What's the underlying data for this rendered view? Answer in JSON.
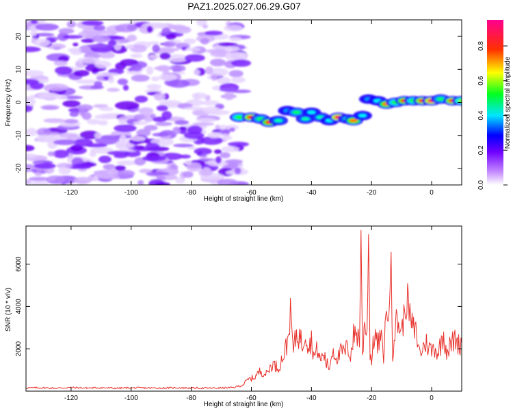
{
  "title": "PAZ1.2025.027.06.29.G07",
  "chart_data": [
    {
      "type": "heatmap",
      "xlabel": "Height of straight line (km)",
      "ylabel": "Frequency (Hz)",
      "xlim": [
        -135,
        10
      ],
      "ylim": [
        -25,
        25
      ],
      "x_ticks": [
        -120,
        -100,
        -80,
        -60,
        -40,
        -20,
        0
      ],
      "y_ticks": [
        -20,
        -10,
        0,
        10,
        20
      ],
      "colorbar": {
        "label": "Normalized spectral amplitude",
        "range": [
          0,
          0.95
        ],
        "ticks": [
          0.0,
          0.2,
          0.4,
          0.6,
          0.8
        ],
        "colormap": [
          "#ffffff",
          "#8000ff",
          "#0000ff",
          "#00ffff",
          "#00ff00",
          "#ffff00",
          "#ff0000",
          "#ff00a0"
        ]
      },
      "noise_region": {
        "x_range": [
          -135,
          -63
        ],
        "y_range": [
          -25,
          25
        ],
        "amplitude": 0.1
      },
      "ridge": [
        {
          "x": -64,
          "freq": -4.5,
          "amp": 0.55
        },
        {
          "x": -60,
          "freq": -4.5,
          "amp": 0.85
        },
        {
          "x": -57,
          "freq": -5.0,
          "amp": 0.5
        },
        {
          "x": -54,
          "freq": -6.0,
          "amp": 0.8
        },
        {
          "x": -51,
          "freq": -5.5,
          "amp": 0.45
        },
        {
          "x": -48,
          "freq": -2.5,
          "amp": 0.35
        },
        {
          "x": -45,
          "freq": -3.0,
          "amp": 0.5
        },
        {
          "x": -42,
          "freq": -5.0,
          "amp": 0.45
        },
        {
          "x": -40,
          "freq": -3.0,
          "amp": 0.4
        },
        {
          "x": -37,
          "freq": -4.5,
          "amp": 0.45
        },
        {
          "x": -34,
          "freq": -5.5,
          "amp": 0.4
        },
        {
          "x": -31,
          "freq": -4.5,
          "amp": 0.9
        },
        {
          "x": -28,
          "freq": -5.0,
          "amp": 0.45
        },
        {
          "x": -26,
          "freq": -5.5,
          "amp": 0.75
        },
        {
          "x": -23,
          "freq": -4.0,
          "amp": 0.4
        },
        {
          "x": -21,
          "freq": 1.0,
          "amp": 0.35
        },
        {
          "x": -18,
          "freq": 0.5,
          "amp": 0.4
        },
        {
          "x": -15,
          "freq": -0.5,
          "amp": 0.75
        },
        {
          "x": -12,
          "freq": 0.0,
          "amp": 0.55
        },
        {
          "x": -9,
          "freq": 0.5,
          "amp": 0.8
        },
        {
          "x": -6,
          "freq": 0.5,
          "amp": 0.55
        },
        {
          "x": -3,
          "freq": 0.5,
          "amp": 0.85
        },
        {
          "x": 0,
          "freq": 0.5,
          "amp": 0.9
        },
        {
          "x": 3,
          "freq": 1.0,
          "amp": 0.5
        },
        {
          "x": 7,
          "freq": 0.5,
          "amp": 0.85
        },
        {
          "x": 10,
          "freq": 0.5,
          "amp": 0.6
        }
      ]
    },
    {
      "type": "line",
      "xlabel": "Height of straight line (km)",
      "ylabel": "SNR (10 * v/v)",
      "xlim": [
        -135,
        10
      ],
      "ylim": [
        0,
        7800
      ],
      "x_ticks": [
        -120,
        -100,
        -80,
        -60,
        -40,
        -20,
        0
      ],
      "y_ticks": [
        2000,
        4000,
        6000
      ],
      "series": [
        {
          "color": "#e8302a",
          "x": [
            -135,
            -130,
            -125,
            -120,
            -115,
            -110,
            -105,
            -100,
            -95,
            -90,
            -85,
            -80,
            -75,
            -70,
            -66,
            -63,
            -61,
            -59,
            -57,
            -55,
            -53,
            -51,
            -49,
            -48,
            -47,
            -46,
            -45,
            -44,
            -43,
            -42,
            -41,
            -40,
            -39,
            -38,
            -37,
            -36,
            -35,
            -34,
            -33,
            -32,
            -31,
            -30,
            -29,
            -28,
            -27,
            -26,
            -25,
            -24,
            -23.5,
            -23,
            -22.5,
            -22,
            -21.5,
            -21,
            -20.5,
            -20,
            -19,
            -18,
            -17,
            -16,
            -15,
            -14,
            -13.5,
            -13,
            -12.5,
            -12,
            -11,
            -10,
            -9,
            -8,
            -7,
            -6,
            -5,
            -4,
            -3,
            -2,
            -1,
            0,
            1,
            2,
            3,
            4,
            5,
            6,
            7,
            8,
            9,
            10
          ],
          "y": [
            150,
            160,
            140,
            170,
            150,
            160,
            140,
            155,
            150,
            145,
            160,
            150,
            140,
            150,
            170,
            280,
            550,
            650,
            950,
            800,
            1300,
            1100,
            1800,
            2300,
            3700,
            1900,
            2700,
            2600,
            2200,
            2900,
            2100,
            2400,
            1600,
            2000,
            1400,
            1800,
            1300,
            1100,
            2000,
            1700,
            1600,
            1900,
            1800,
            2100,
            1700,
            2600,
            2800,
            2400,
            7800,
            1500,
            3000,
            3200,
            2800,
            7400,
            1900,
            1400,
            2800,
            2100,
            2600,
            1700,
            3900,
            3600,
            6800,
            1800,
            2600,
            3300,
            3200,
            2800,
            3700,
            4400,
            3300,
            2900,
            2700,
            1800,
            2000,
            2300,
            2100,
            1900,
            2100,
            1800,
            2200,
            2700,
            1900,
            2100,
            2300,
            2500,
            2200,
            2300
          ]
        }
      ]
    }
  ]
}
